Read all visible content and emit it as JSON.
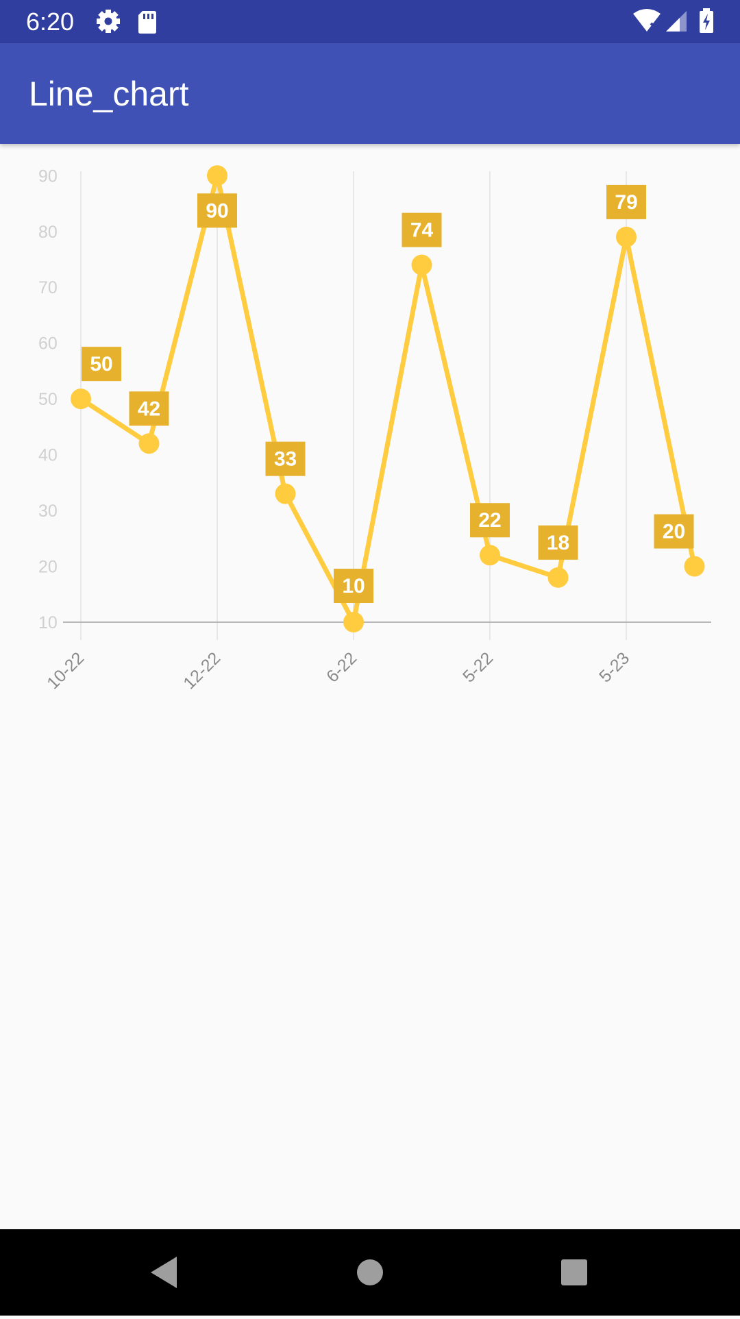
{
  "status_bar": {
    "time": "6:20",
    "icons": [
      "gear-icon",
      "sd-card-icon",
      "wifi-icon",
      "signal-icon",
      "battery-charging-icon"
    ]
  },
  "app_bar": {
    "title": "Line_chart"
  },
  "colors": {
    "status_bar": "#303F9F",
    "app_bar": "#3F51B5",
    "line": "#FFCC40",
    "label_bg": "#E6B22E",
    "background": "#FAFAFA"
  },
  "chart_data": {
    "type": "line",
    "title": "",
    "xlabel": "",
    "ylabel": "",
    "y_ticks": [
      10,
      20,
      30,
      40,
      50,
      60,
      70,
      80,
      90
    ],
    "ylim": [
      10,
      92
    ],
    "x_tick_labels": [
      "10-22",
      "12-22",
      "6-22",
      "5-22",
      "5-23"
    ],
    "values": [
      50,
      42,
      90,
      33,
      10,
      74,
      22,
      18,
      79,
      20
    ],
    "vertical_grid": true,
    "horizontal_grid": false,
    "legend": "none"
  },
  "nav_bar": {
    "buttons": [
      "back-icon",
      "home-icon",
      "recents-icon"
    ]
  }
}
